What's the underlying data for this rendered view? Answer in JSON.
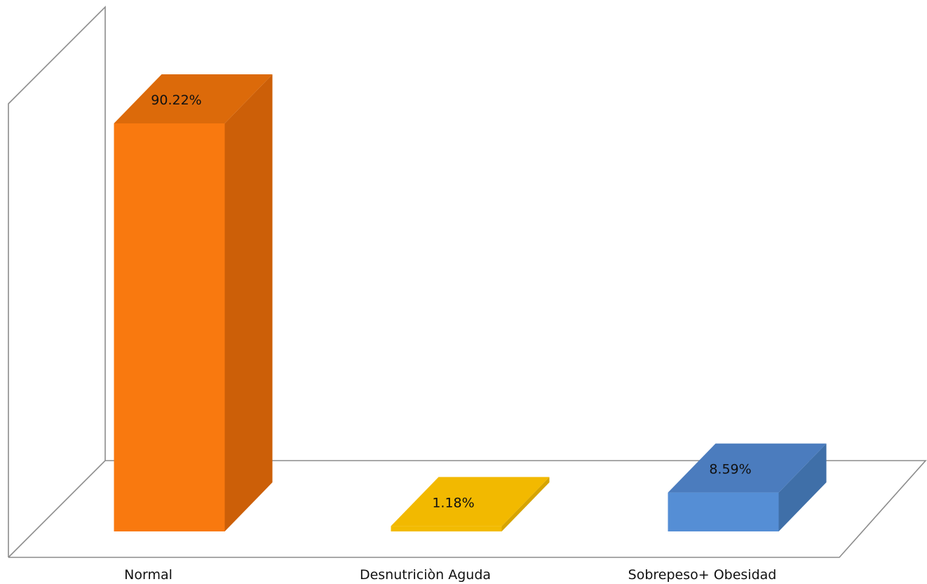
{
  "chart_data": {
    "type": "bar",
    "style": "3d",
    "categories": [
      "Normal",
      "Desnutriciòn Aguda",
      "Sobrepeso+ Obesidad"
    ],
    "values": [
      90.22,
      1.18,
      8.59
    ],
    "data_labels": [
      "90.22%",
      "1.18%",
      "8.59%"
    ],
    "unit": "%",
    "ylim": [
      0,
      100
    ],
    "grid": false,
    "legend": "none",
    "colors": [
      "#f9790f",
      "#f2bb00",
      "#558ed5"
    ],
    "side_colors": [
      "#cc5f08",
      "#d6a400",
      "#3f6fa8"
    ],
    "top_colors": [
      "#dc6a0a",
      "#f2b900",
      "#4b7cbe"
    ]
  }
}
